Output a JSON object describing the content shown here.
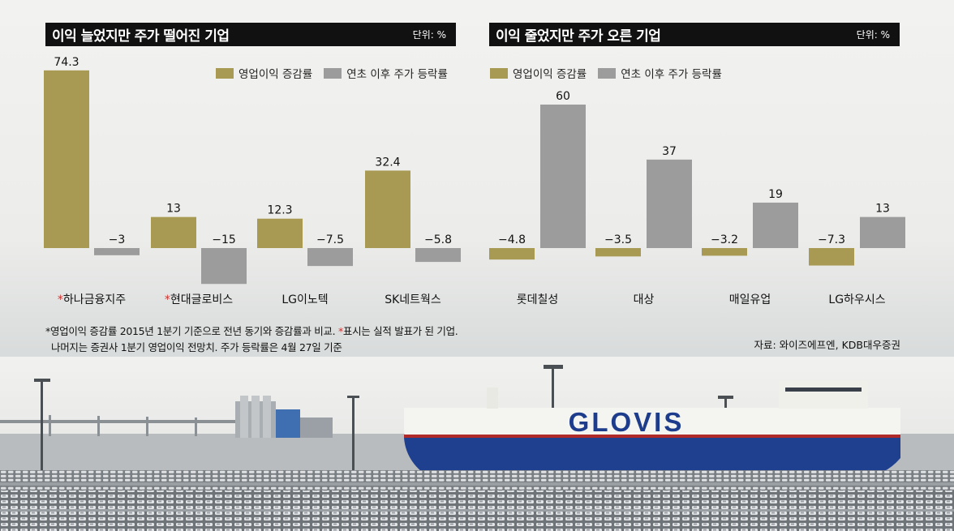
{
  "left_panel": {
    "title": "이익 늘었지만 주가 떨어진 기업",
    "unit": "단위: %"
  },
  "right_panel": {
    "title": "이익 줄었지만 주가 오른 기업",
    "unit": "단위: %"
  },
  "legend": {
    "series1": "영업이익 증감률",
    "series2": "연초 이후 주가 등락률"
  },
  "colors": {
    "series1": "#a89a52",
    "series2": "#9c9c9c",
    "star": "#d0312d"
  },
  "footnote": {
    "star": "*",
    "line1_a": "영업이익 증감률 2015년 1분기 기준으로 전년 동기와 증감률과 비교. ",
    "line1_b": "표시는 실적 발표가 된 기업.",
    "line2": "나머지는 증권사 1분기 영업이익 전망치. 주가 등락률은 4월 27일 기준"
  },
  "source": "자료: 와이즈에프엔, KDB대우증권",
  "photo": {
    "ship_text": "GLOVIS"
  },
  "chart_data": [
    {
      "type": "bar",
      "title": "이익 늘었지만 주가 떨어진 기업",
      "categories": [
        "하나금융지주",
        "현대글로비스",
        "LG이노텍",
        "SK네트웍스"
      ],
      "starred": [
        true,
        true,
        false,
        false
      ],
      "series": [
        {
          "name": "영업이익 증감률",
          "values": [
            74.3,
            13,
            12.3,
            32.4
          ],
          "labels": [
            "74.3",
            "13",
            "12.3",
            "32.4"
          ]
        },
        {
          "name": "연초 이후 주가 등락률",
          "values": [
            -3,
            -15,
            -7.5,
            -5.8
          ],
          "labels": [
            "−3",
            "−15",
            "−7.5",
            "−5.8"
          ]
        }
      ]
    },
    {
      "type": "bar",
      "title": "이익 줄었지만 주가 오른 기업",
      "categories": [
        "롯데칠성",
        "대상",
        "매일유업",
        "LG하우시스"
      ],
      "starred": [
        false,
        false,
        false,
        false
      ],
      "series": [
        {
          "name": "영업이익 증감률",
          "values": [
            -4.8,
            -3.5,
            -3.2,
            -7.3
          ],
          "labels": [
            "−4.8",
            "−3.5",
            "−3.2",
            "−7.3"
          ]
        },
        {
          "name": "연초 이후 주가 등락률",
          "values": [
            60,
            37,
            19,
            13
          ],
          "labels": [
            "60",
            "37",
            "19",
            "13"
          ]
        }
      ]
    }
  ]
}
